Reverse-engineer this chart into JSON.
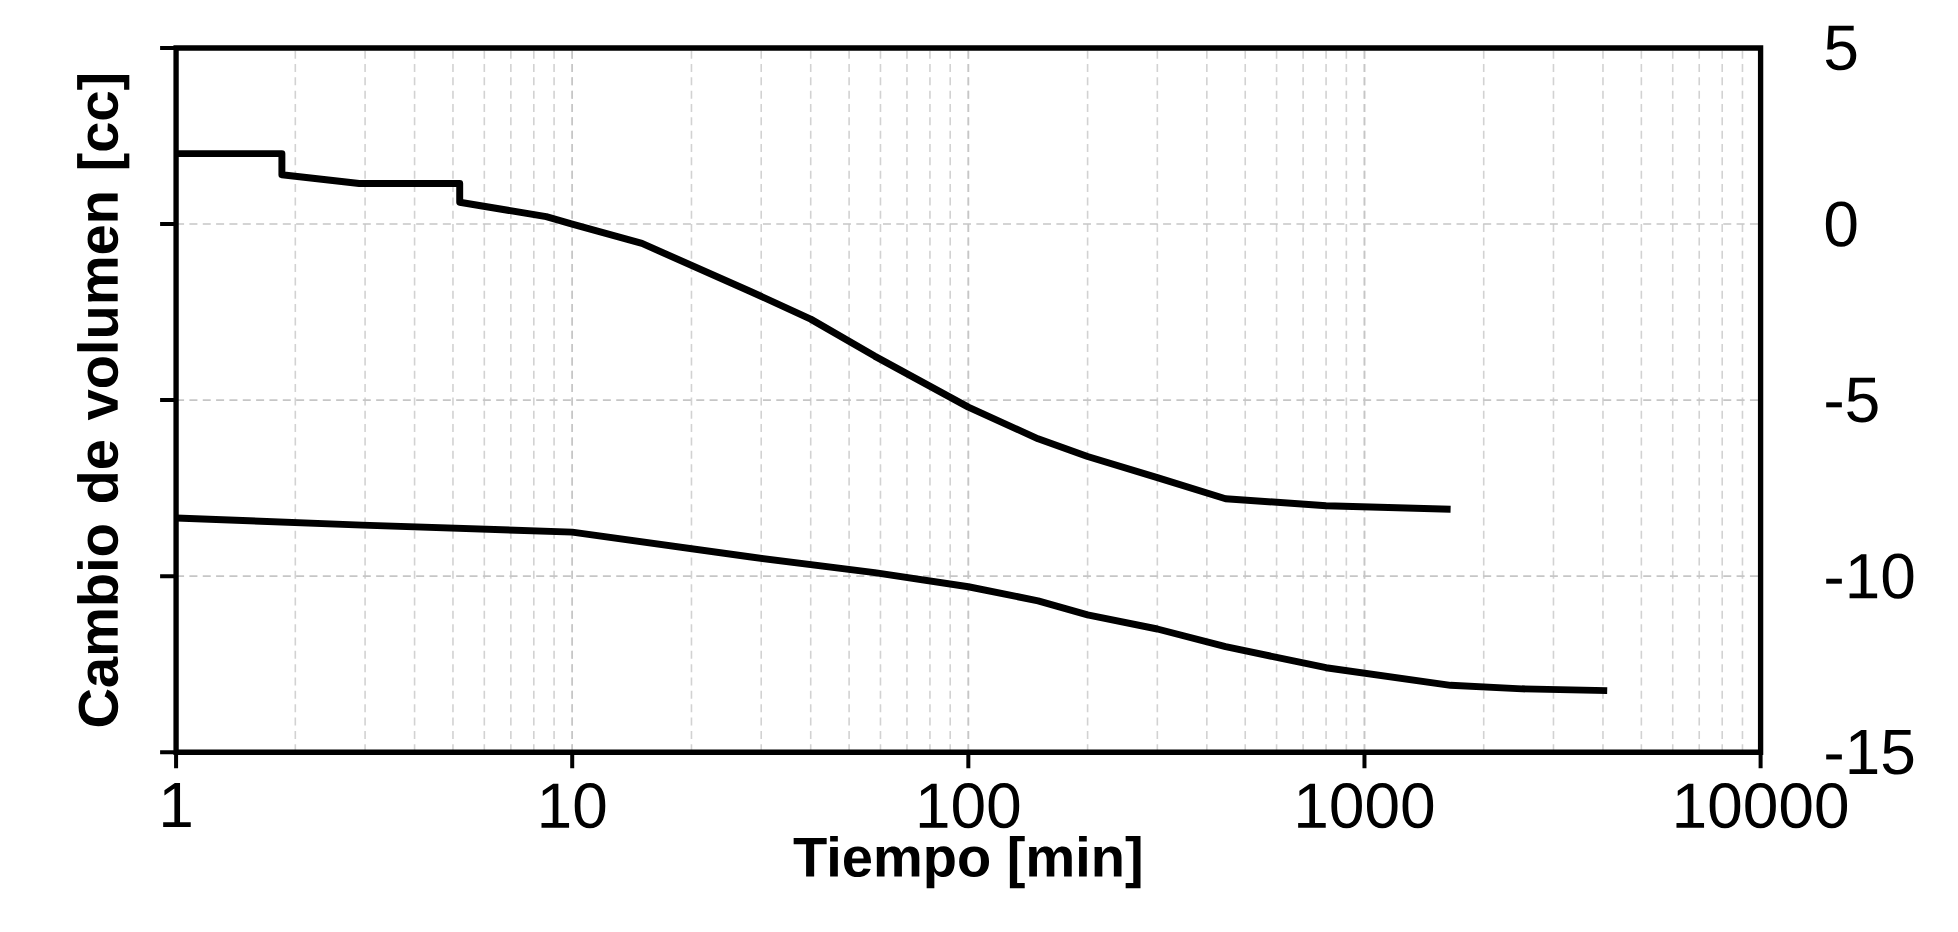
{
  "chart_data": {
    "type": "line",
    "xlabel": "Tiempo [min]",
    "ylabel": "Cambio de volumen [cc]",
    "log": "x",
    "grid": true,
    "xlim": [
      1,
      10000
    ],
    "xticks": [
      1,
      10,
      100,
      1000,
      10000
    ],
    "ylim": [
      -15,
      5
    ],
    "yticks": [
      -15,
      -10,
      -5,
      0,
      5
    ],
    "series": [
      {
        "color": "#000000",
        "x": [
          1,
          1.85,
          1.85,
          2.9,
          5.2,
          5.2,
          8.6,
          10,
          15,
          28,
          40,
          58,
          100,
          150,
          200,
          300,
          446,
          800,
          1650
        ],
        "values": [
          2.0,
          2.0,
          1.4,
          1.15,
          1.15,
          0.62,
          0.21,
          0.0,
          -0.55,
          -1.9,
          -2.7,
          -3.75,
          -5.2,
          -6.1,
          -6.6,
          -7.2,
          -7.8,
          -8.0,
          -8.1
        ]
      },
      {
        "color": "#000000",
        "x": [
          1,
          2.95,
          10,
          28,
          58,
          100,
          150,
          200,
          300,
          446,
          800,
          1650,
          2500,
          4100
        ],
        "values": [
          -8.35,
          -8.55,
          -8.75,
          -9.45,
          -9.9,
          -10.3,
          -10.7,
          -11.1,
          -11.5,
          -12.0,
          -12.6,
          -13.1,
          -13.2,
          -13.25
        ]
      }
    ]
  }
}
